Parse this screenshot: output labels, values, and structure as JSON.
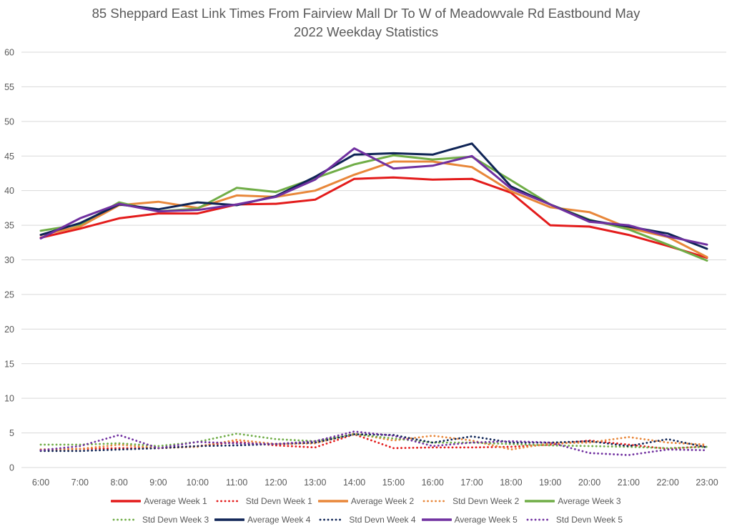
{
  "chart_data": {
    "type": "line",
    "title_lines": [
      "85 Sheppard East Link Times From Fairview Mall Dr To W of Meadowvale Rd Eastbound May",
      "2022 Weekday Statistics"
    ],
    "xlabel": "",
    "ylabel": "",
    "ylim": [
      0,
      60
    ],
    "yticks": [
      0,
      5,
      10,
      15,
      20,
      25,
      30,
      35,
      40,
      45,
      50,
      55,
      60
    ],
    "grid": true,
    "legend_position": "bottom",
    "categories": [
      "6:00",
      "7:00",
      "8:00",
      "9:00",
      "10:00",
      "11:00",
      "12:00",
      "13:00",
      "14:00",
      "15:00",
      "16:00",
      "17:00",
      "18:00",
      "19:00",
      "20:00",
      "21:00",
      "22:00",
      "23:00"
    ],
    "series": [
      {
        "name": "Average Week 1",
        "style": "solid",
        "color": "#e31b1b",
        "values": [
          33.2,
          34.5,
          36.0,
          36.7,
          36.7,
          38.0,
          38.1,
          38.7,
          41.7,
          41.9,
          41.6,
          41.7,
          39.7,
          35.0,
          34.8,
          33.6,
          32.0,
          30.3
        ]
      },
      {
        "name": "Std Devn Week 1",
        "style": "dotted",
        "color": "#e31b1b",
        "values": [
          2.6,
          2.7,
          2.8,
          2.8,
          3.1,
          3.7,
          3.2,
          2.9,
          4.8,
          2.8,
          2.9,
          2.9,
          3.0,
          3.3,
          3.9,
          3.3,
          2.7,
          3.1
        ]
      },
      {
        "name": "Average Week 2",
        "style": "solid",
        "color": "#e8873a",
        "values": [
          33.6,
          34.8,
          37.9,
          38.4,
          37.5,
          39.3,
          39.1,
          40.0,
          42.3,
          44.2,
          44.2,
          43.4,
          39.9,
          37.6,
          36.9,
          34.6,
          33.3,
          30.4
        ]
      },
      {
        "name": "Std Devn Week 2",
        "style": "dotted",
        "color": "#e8873a",
        "values": [
          2.6,
          2.7,
          3.3,
          2.8,
          3.0,
          4.0,
          3.4,
          3.5,
          4.9,
          3.9,
          4.6,
          3.9,
          2.6,
          3.5,
          3.6,
          4.4,
          3.6,
          3.3
        ]
      },
      {
        "name": "Average Week 3",
        "style": "solid",
        "color": "#70ad47",
        "values": [
          34.2,
          35.1,
          38.3,
          37.0,
          37.4,
          40.4,
          39.8,
          41.8,
          43.8,
          45.1,
          44.5,
          44.9,
          41.5,
          38.0,
          35.8,
          34.4,
          32.2,
          29.9
        ]
      },
      {
        "name": "Std Devn Week 3",
        "style": "dotted",
        "color": "#70ad47",
        "values": [
          3.3,
          3.3,
          3.5,
          3.1,
          3.7,
          4.9,
          4.1,
          3.8,
          4.8,
          4.2,
          3.6,
          3.6,
          3.4,
          3.2,
          3.1,
          3.0,
          2.8,
          3.0
        ]
      },
      {
        "name": "Average Week 4",
        "style": "solid",
        "color": "#0f2456",
        "values": [
          33.6,
          35.3,
          38.0,
          37.3,
          38.3,
          37.9,
          39.2,
          42.0,
          45.2,
          45.4,
          45.2,
          46.8,
          40.6,
          38.0,
          35.7,
          34.8,
          33.8,
          31.6
        ]
      },
      {
        "name": "Std Devn Week 4",
        "style": "dotted",
        "color": "#0f2456",
        "values": [
          2.4,
          2.4,
          2.6,
          2.8,
          3.1,
          3.2,
          3.4,
          3.6,
          4.8,
          4.7,
          3.6,
          4.5,
          3.6,
          3.6,
          3.8,
          3.1,
          4.1,
          2.9
        ]
      },
      {
        "name": "Average Week 5",
        "style": "solid",
        "color": "#7030a0",
        "values": [
          33.1,
          36.0,
          38.1,
          37.0,
          37.2,
          38.0,
          39.1,
          41.6,
          46.1,
          43.2,
          43.6,
          45.0,
          40.3,
          38.0,
          35.5,
          35.0,
          33.4,
          32.2
        ]
      },
      {
        "name": "Std Devn Week 5",
        "style": "dotted",
        "color": "#7030a0",
        "values": [
          2.5,
          3.1,
          4.7,
          2.8,
          3.7,
          3.5,
          3.4,
          3.8,
          5.2,
          4.6,
          3.1,
          3.6,
          3.8,
          3.6,
          2.1,
          1.8,
          2.6,
          2.5
        ]
      }
    ]
  }
}
